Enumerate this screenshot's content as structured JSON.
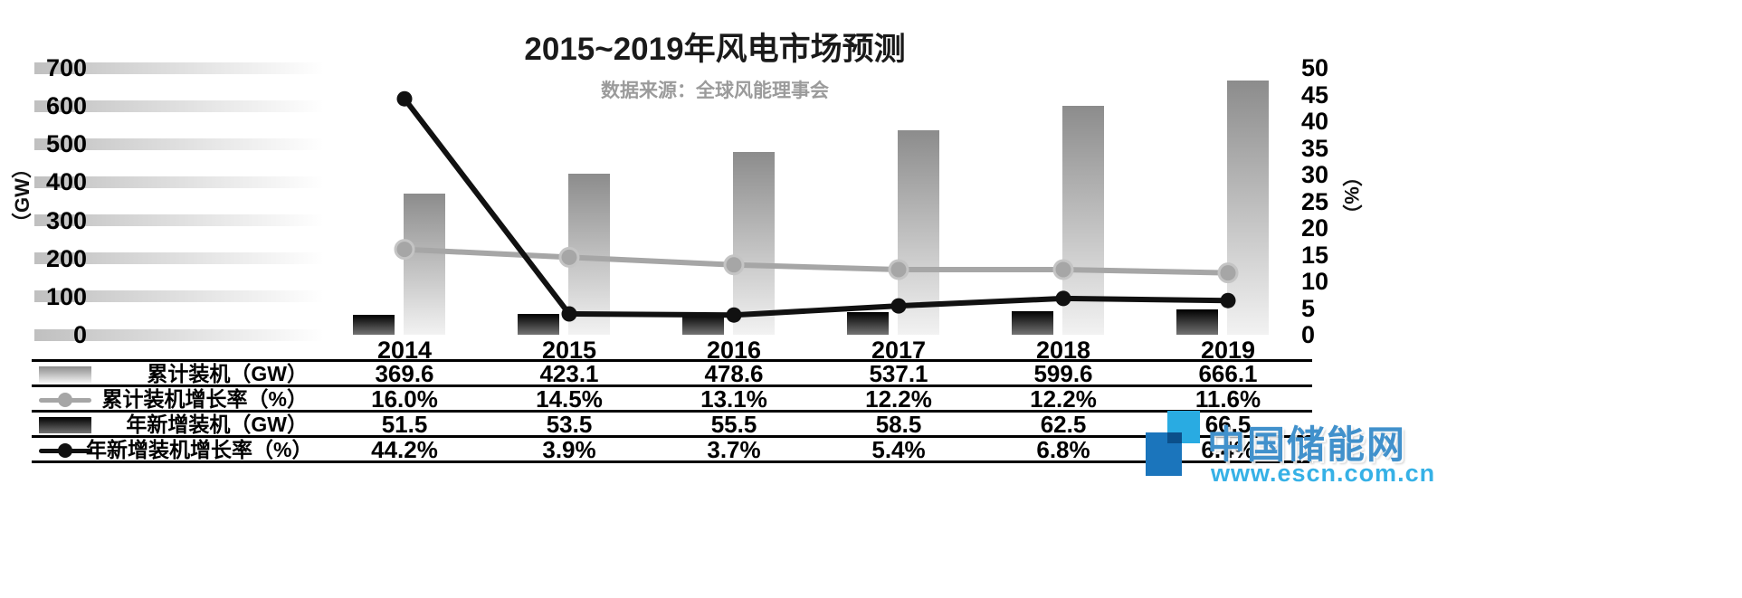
{
  "page": {
    "background": "#ffffff"
  },
  "chart_data": {
    "type": "bar",
    "combo": "bars (GW, left axis) + lines (%, right axis)",
    "title": "2015~2019年风电市场预测",
    "subtitle": "数据来源：全球风能理事会",
    "categories": [
      "2014",
      "2015",
      "2016",
      "2017",
      "2018",
      "2019"
    ],
    "left_axis": {
      "label": "（GW）",
      "min": 0,
      "max": 700,
      "ticks": [
        "700",
        "600",
        "500",
        "400",
        "300",
        "200",
        "100",
        "0"
      ]
    },
    "right_axis": {
      "label": "（%）",
      "min": 0,
      "max": 50,
      "ticks": [
        "50",
        "45",
        "40",
        "35",
        "30",
        "25",
        "20",
        "15",
        "10",
        "5",
        "0"
      ]
    },
    "grid": "faded horizontal gradient bands at left-axis ticks",
    "legend_position": "table rows, left column",
    "series": [
      {
        "name": "累计装机（GW）",
        "type": "bar",
        "axis": "left",
        "color_top": "#8c8c8c",
        "color_bottom": "#f2f2f2",
        "values": [
          369.6,
          423.1,
          478.6,
          537.1,
          599.6,
          666.1
        ],
        "display": [
          "369.6",
          "423.1",
          "478.6",
          "537.1",
          "599.6",
          "666.1"
        ]
      },
      {
        "name": "累计装机增长率（%）",
        "type": "line",
        "axis": "right",
        "color": "#a6a6a6",
        "values": [
          16.0,
          14.5,
          13.1,
          12.2,
          12.2,
          11.6
        ],
        "display": [
          "16.0%",
          "14.5%",
          "13.1%",
          "12.2%",
          "12.2%",
          "11.6%"
        ]
      },
      {
        "name": "年新增装机（GW）",
        "type": "bar",
        "axis": "left",
        "color_top": "#000000",
        "color_bottom": "#737373",
        "values": [
          51.5,
          53.5,
          55.5,
          58.5,
          62.5,
          66.5
        ],
        "display": [
          "51.5",
          "53.5",
          "55.5",
          "58.5",
          "62.5",
          "66.5"
        ]
      },
      {
        "name": "年新增装机增长率（%）",
        "type": "line",
        "axis": "right",
        "color": "#111111",
        "values": [
          44.2,
          3.9,
          3.7,
          5.4,
          6.8,
          6.4
        ],
        "display": [
          "44.2%",
          "3.9%",
          "3.7%",
          "5.4%",
          "6.8%",
          "6.4%"
        ]
      }
    ]
  },
  "watermark": {
    "brand": "中国储能网",
    "url": "www.escn.com.cn",
    "brand_color": "#4191cc",
    "url_color": "#36b1e6",
    "logo_cyan": "#29abe2",
    "logo_blue": "#1b75bc"
  }
}
